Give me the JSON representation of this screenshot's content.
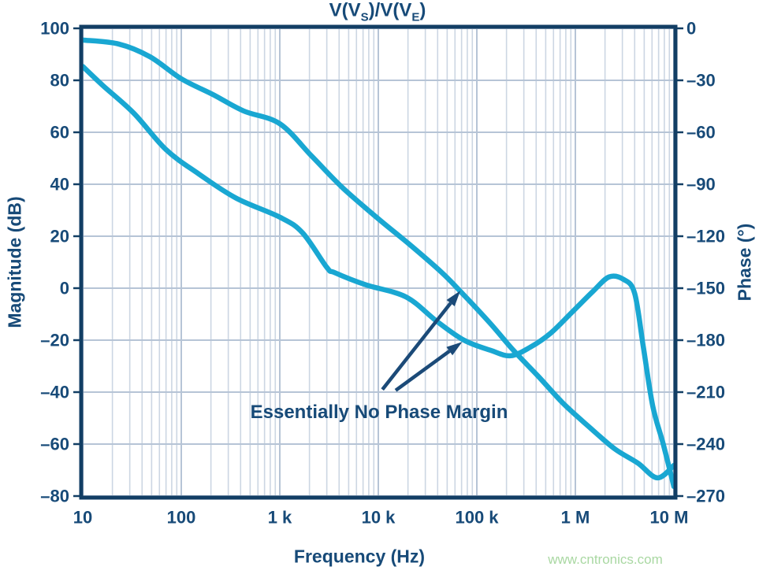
{
  "title": {
    "p1": "V(V",
    "sub1": "S",
    "p2": ")/V(V",
    "sub2": "E",
    "p3": ")"
  },
  "axes": {
    "left_label": "Magnitude (dB)",
    "right_label": "Phase (°)",
    "bottom_label": "Frequency (Hz)"
  },
  "annotation": {
    "text": "Essentially No Phase Margin"
  },
  "watermark": "www.cntronics.com",
  "colors": {
    "curve": "#19a7d2",
    "text_navy": "#174a78",
    "frame_navy": "#123e64",
    "arrow_navy": "#1b4a78",
    "grid_minor": "#ccd6e3",
    "grid_major": "#b6c4d6",
    "background": "#ffffff",
    "watermark_green": "#a9d8a2"
  },
  "chart_data": {
    "type": "line",
    "title": "V(V_S)/V(V_E)",
    "xlabel": "Frequency (Hz)",
    "x_scale": "log",
    "x_range": [
      10,
      10000000
    ],
    "grid": true,
    "y_left": {
      "label": "Magnitude (dB)",
      "range": [
        -80,
        100
      ],
      "ticks": [
        100,
        80,
        60,
        40,
        20,
        0,
        -20,
        -40,
        -60,
        -80
      ],
      "tick_labels": [
        "100",
        "80",
        "60",
        "40",
        "20",
        "0",
        "–20",
        "–40",
        "–60",
        "–80"
      ]
    },
    "y_right": {
      "label": "Phase (°)",
      "range": [
        -270,
        0
      ],
      "ticks": [
        0,
        -30,
        -60,
        -90,
        -120,
        -150,
        -180,
        -210,
        -240,
        -270
      ],
      "tick_labels": [
        "0",
        "–30",
        "–60",
        "–90",
        "–120",
        "–150",
        "–180",
        "–210",
        "–240",
        "–270"
      ]
    },
    "freq_ticks": [
      10,
      100,
      1000,
      10000,
      100000,
      1000000,
      10000000
    ],
    "freq_tick_labels": [
      "10",
      "100",
      "1 k",
      "10 k",
      "100 k",
      "1 M",
      "10 M"
    ],
    "series": [
      {
        "name": "Magnitude (dB)",
        "axis": "left",
        "points": [
          [
            10,
            95.5
          ],
          [
            23,
            94
          ],
          [
            48,
            89.1
          ],
          [
            100,
            80.6
          ],
          [
            210,
            74.5
          ],
          [
            430,
            68.2
          ],
          [
            1000,
            63.3
          ],
          [
            2100,
            50.9
          ],
          [
            4300,
            38.8
          ],
          [
            10000,
            26.7
          ],
          [
            20500,
            17
          ],
          [
            43000,
            6.4
          ],
          [
            68000,
            -1.2
          ],
          [
            135000,
            -13.3
          ],
          [
            235000,
            -23.9
          ],
          [
            420000,
            -33.9
          ],
          [
            760000,
            -44.5
          ],
          [
            1400000,
            -53.6
          ],
          [
            2500000,
            -61.8
          ],
          [
            4300000,
            -67.3
          ],
          [
            6800000,
            -73
          ],
          [
            10000000,
            -68.2
          ]
        ]
      },
      {
        "name": "Phase (°)",
        "axis": "right",
        "points": [
          [
            10,
            -22
          ],
          [
            16,
            -33
          ],
          [
            33,
            -49
          ],
          [
            70,
            -70
          ],
          [
            150,
            -84
          ],
          [
            360,
            -98
          ],
          [
            1000,
            -109
          ],
          [
            1700,
            -118
          ],
          [
            3000,
            -138
          ],
          [
            3600,
            -141
          ],
          [
            7400,
            -148
          ],
          [
            19000,
            -155
          ],
          [
            39000,
            -169
          ],
          [
            74000,
            -180
          ],
          [
            140000,
            -186
          ],
          [
            220000,
            -189
          ],
          [
            350000,
            -184
          ],
          [
            560000,
            -176
          ],
          [
            920000,
            -164
          ],
          [
            1500000,
            -152
          ],
          [
            2200000,
            -143.5
          ],
          [
            3100000,
            -145
          ],
          [
            4000000,
            -153
          ],
          [
            4900000,
            -184
          ],
          [
            6100000,
            -218
          ],
          [
            7800000,
            -240
          ],
          [
            10000000,
            -264.5
          ]
        ]
      }
    ],
    "annotation_arrows": [
      {
        "from": {
          "freq": 11000,
          "mag": -39
        },
        "to": {
          "freq": 68000,
          "mag": -1
        }
      },
      {
        "from": {
          "freq": 15000,
          "phase": -209
        },
        "to": {
          "freq": 71000,
          "phase": -181
        }
      }
    ],
    "key_readings": {
      "gain_crossover_hz": 70000,
      "phase_at_crossover_deg": -180,
      "phase_margin_deg": 0
    }
  }
}
